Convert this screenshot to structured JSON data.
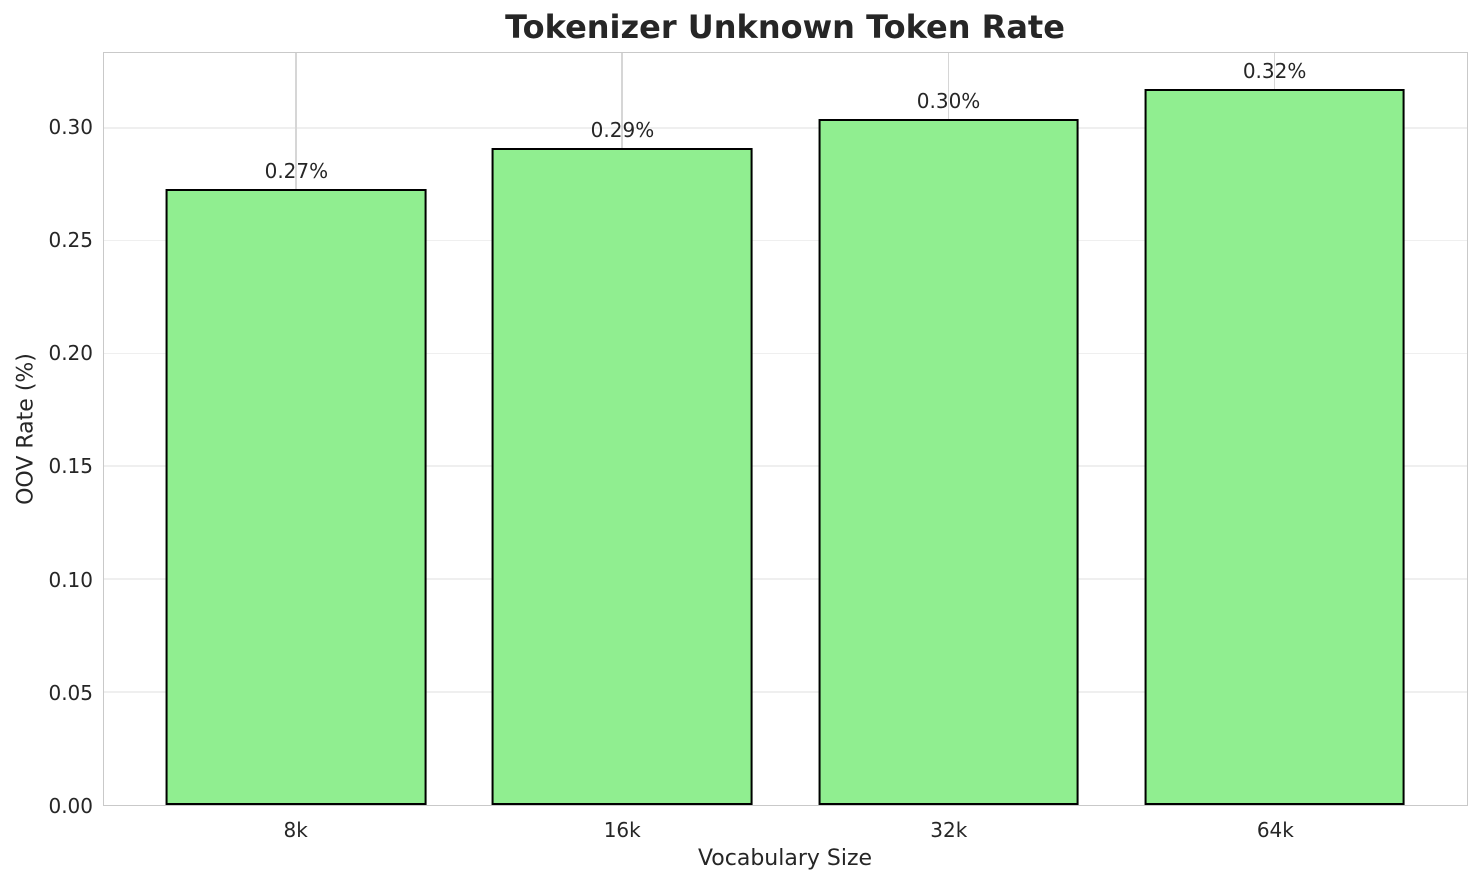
{
  "chart_data": {
    "type": "bar",
    "title": "Tokenizer Unknown Token Rate",
    "xlabel": "Vocabulary Size",
    "ylabel": "OOV Rate (%)",
    "categories": [
      "8k",
      "16k",
      "32k",
      "64k"
    ],
    "values": [
      0.273,
      0.291,
      0.304,
      0.317
    ],
    "bar_labels": [
      "0.27%",
      "0.29%",
      "0.30%",
      "0.32%"
    ],
    "ylim": [
      0,
      0.333
    ],
    "xlim": [
      -0.59,
      3.59
    ],
    "bar_width": 0.8,
    "yticks": [
      0,
      0.05,
      0.1,
      0.15,
      0.2,
      0.25,
      0.3
    ],
    "ytick_labels": [
      "0.00",
      "0.05",
      "0.10",
      "0.15",
      "0.20",
      "0.25",
      "0.30"
    ],
    "grid": true,
    "legend": "none",
    "colors": {
      "bar_fill": "#90EE90",
      "bar_edge": "#000000",
      "grid_horizontal": "#efefef",
      "grid_vertical": "#d6d6d6",
      "spine": "#c9c9c9",
      "text": "#262626",
      "background": "#ffffff"
    }
  }
}
